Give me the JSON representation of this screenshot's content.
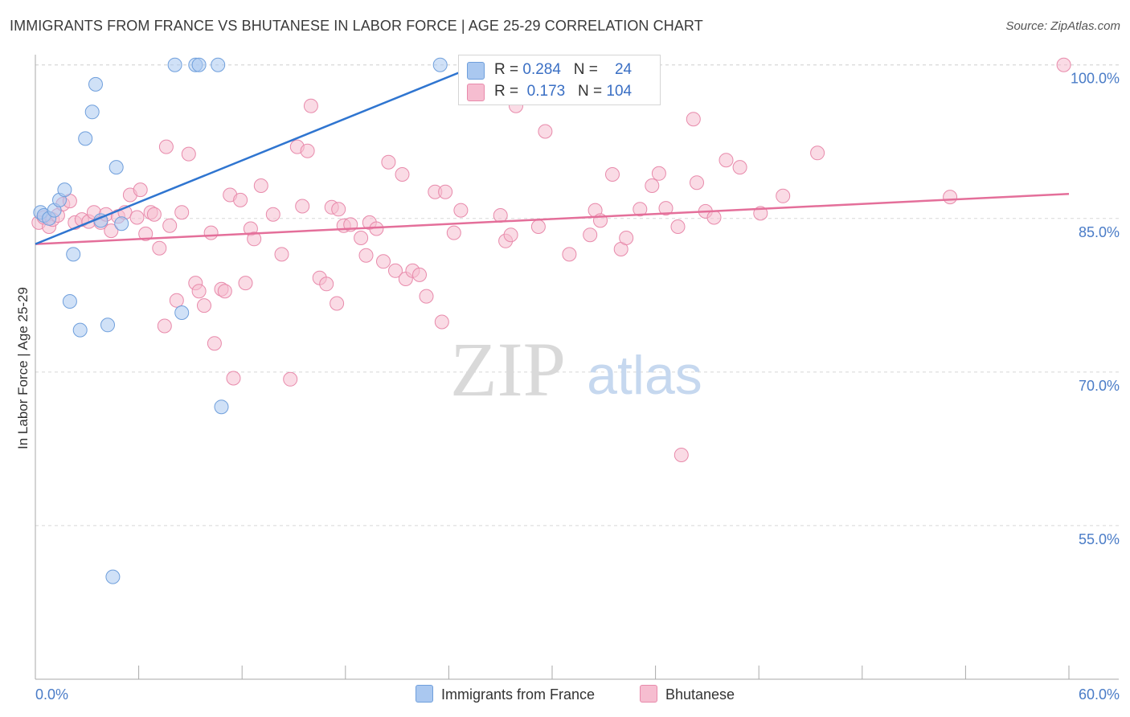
{
  "title": "IMMIGRANTS FROM FRANCE VS BHUTANESE IN LABOR FORCE | AGE 25-29 CORRELATION CHART",
  "source": "Source: ZipAtlas.com",
  "watermark": {
    "zip": "ZIP",
    "atlas": "atlas"
  },
  "colors": {
    "blue_fill": "#aac8f0",
    "blue_stroke": "#6f9fdc",
    "blue_line": "#2f75d0",
    "pink_fill": "#f6bdd0",
    "pink_stroke": "#e88aab",
    "pink_line": "#e46f9a",
    "grid": "#d8d8d8",
    "tick_text": "#4a7cc7"
  },
  "legend_top": {
    "rows": [
      {
        "r_label": "R = ",
        "r_value": "0.284",
        "n_label": "N = ",
        "n_value": "24"
      },
      {
        "r_label": "R = ",
        "r_value": "0.173",
        "n_label": "N = ",
        "n_value": "104"
      }
    ]
  },
  "legend_bottom": {
    "series_1": "Immigrants from France",
    "series_2": "Bhutanese"
  },
  "chart_data": {
    "type": "scatter",
    "title": "IMMIGRANTS FROM FRANCE VS BHUTANESE IN LABOR FORCE | AGE 25-29 CORRELATION CHART",
    "xlabel": "",
    "ylabel": "In Labor Force | Age 25-29",
    "xlim": [
      0,
      60
    ],
    "ylim": [
      40,
      101
    ],
    "x_tick_labels": [
      "0.0%",
      "60.0%"
    ],
    "y_ticks": [
      55,
      70,
      85,
      100
    ],
    "y_tick_labels": [
      "55.0%",
      "70.0%",
      "85.0%",
      "100.0%"
    ],
    "grid": true,
    "legend_position": "top-center",
    "series": [
      {
        "name": "Immigrants from France",
        "r": 0.284,
        "n": 24,
        "trend": {
          "x": [
            0,
            25.7
          ],
          "y": [
            82.5,
            100.0
          ]
        },
        "points": [
          [
            0.3,
            85.6
          ],
          [
            0.5,
            85.3
          ],
          [
            0.8,
            85.0
          ],
          [
            1.1,
            85.8
          ],
          [
            1.4,
            86.8
          ],
          [
            1.7,
            87.8
          ],
          [
            2.2,
            81.5
          ],
          [
            2.0,
            76.9
          ],
          [
            2.6,
            74.1
          ],
          [
            2.9,
            92.8
          ],
          [
            3.3,
            95.4
          ],
          [
            3.5,
            98.1
          ],
          [
            3.8,
            84.8
          ],
          [
            4.2,
            74.6
          ],
          [
            4.7,
            90.0
          ],
          [
            5.0,
            84.5
          ],
          [
            8.1,
            100.0
          ],
          [
            8.5,
            75.8
          ],
          [
            9.3,
            100.0
          ],
          [
            9.5,
            100.0
          ],
          [
            10.6,
            100.0
          ],
          [
            10.8,
            66.6
          ],
          [
            4.5,
            50.0
          ],
          [
            23.5,
            100.0
          ]
        ]
      },
      {
        "name": "Bhutanese",
        "r": 0.173,
        "n": 104,
        "trend": {
          "x": [
            0,
            60
          ],
          "y": [
            82.5,
            87.4
          ]
        },
        "points": [
          [
            0.2,
            84.6
          ],
          [
            0.5,
            85.1
          ],
          [
            0.8,
            84.2
          ],
          [
            1.0,
            84.9
          ],
          [
            1.3,
            85.3
          ],
          [
            1.6,
            86.4
          ],
          [
            2.0,
            86.7
          ],
          [
            2.3,
            84.6
          ],
          [
            2.7,
            84.9
          ],
          [
            3.1,
            84.7
          ],
          [
            3.4,
            85.6
          ],
          [
            3.8,
            84.6
          ],
          [
            4.1,
            85.4
          ],
          [
            4.4,
            83.8
          ],
          [
            4.8,
            85.2
          ],
          [
            5.2,
            85.6
          ],
          [
            5.5,
            87.3
          ],
          [
            5.9,
            85.1
          ],
          [
            6.1,
            87.8
          ],
          [
            6.4,
            83.5
          ],
          [
            6.7,
            85.6
          ],
          [
            6.9,
            85.4
          ],
          [
            7.2,
            82.1
          ],
          [
            7.5,
            74.5
          ],
          [
            7.6,
            92.0
          ],
          [
            7.8,
            84.3
          ],
          [
            8.2,
            77.0
          ],
          [
            8.5,
            85.6
          ],
          [
            8.9,
            91.3
          ],
          [
            9.3,
            78.7
          ],
          [
            9.5,
            77.9
          ],
          [
            9.8,
            76.5
          ],
          [
            10.2,
            83.6
          ],
          [
            10.4,
            72.8
          ],
          [
            10.8,
            78.1
          ],
          [
            11.0,
            77.9
          ],
          [
            11.3,
            87.3
          ],
          [
            11.5,
            69.4
          ],
          [
            11.9,
            86.8
          ],
          [
            12.2,
            78.7
          ],
          [
            12.5,
            84.0
          ],
          [
            12.7,
            83.0
          ],
          [
            13.1,
            88.2
          ],
          [
            13.8,
            85.4
          ],
          [
            14.3,
            81.5
          ],
          [
            14.8,
            69.3
          ],
          [
            15.2,
            92.0
          ],
          [
            15.5,
            86.2
          ],
          [
            15.8,
            91.6
          ],
          [
            16.0,
            96.0
          ],
          [
            16.5,
            79.2
          ],
          [
            16.9,
            78.6
          ],
          [
            17.2,
            86.1
          ],
          [
            17.5,
            76.7
          ],
          [
            17.6,
            85.9
          ],
          [
            17.9,
            84.3
          ],
          [
            18.3,
            84.4
          ],
          [
            18.9,
            83.1
          ],
          [
            19.2,
            81.4
          ],
          [
            19.4,
            84.6
          ],
          [
            19.8,
            84.0
          ],
          [
            20.2,
            80.8
          ],
          [
            20.5,
            90.5
          ],
          [
            20.9,
            79.9
          ],
          [
            21.3,
            89.3
          ],
          [
            21.5,
            79.1
          ],
          [
            21.9,
            79.9
          ],
          [
            22.3,
            79.5
          ],
          [
            22.7,
            77.4
          ],
          [
            23.2,
            87.6
          ],
          [
            23.6,
            74.9
          ],
          [
            23.8,
            87.6
          ],
          [
            24.3,
            83.6
          ],
          [
            24.7,
            85.8
          ],
          [
            27.0,
            85.3
          ],
          [
            27.3,
            82.8
          ],
          [
            27.6,
            83.4
          ],
          [
            27.9,
            96.0
          ],
          [
            29.2,
            84.2
          ],
          [
            29.6,
            93.5
          ],
          [
            31.0,
            81.5
          ],
          [
            32.2,
            83.4
          ],
          [
            32.5,
            85.8
          ],
          [
            32.8,
            84.8
          ],
          [
            33.5,
            89.3
          ],
          [
            34.0,
            82.0
          ],
          [
            34.3,
            83.1
          ],
          [
            35.1,
            85.9
          ],
          [
            35.8,
            88.2
          ],
          [
            36.2,
            89.4
          ],
          [
            36.6,
            86.0
          ],
          [
            37.3,
            84.2
          ],
          [
            37.5,
            61.9
          ],
          [
            38.2,
            94.7
          ],
          [
            38.4,
            88.5
          ],
          [
            38.9,
            85.7
          ],
          [
            39.4,
            85.1
          ],
          [
            40.1,
            90.7
          ],
          [
            40.9,
            90.0
          ],
          [
            42.1,
            85.5
          ],
          [
            43.4,
            87.2
          ],
          [
            45.4,
            91.4
          ],
          [
            53.1,
            87.1
          ],
          [
            59.7,
            100.0
          ]
        ]
      }
    ]
  }
}
